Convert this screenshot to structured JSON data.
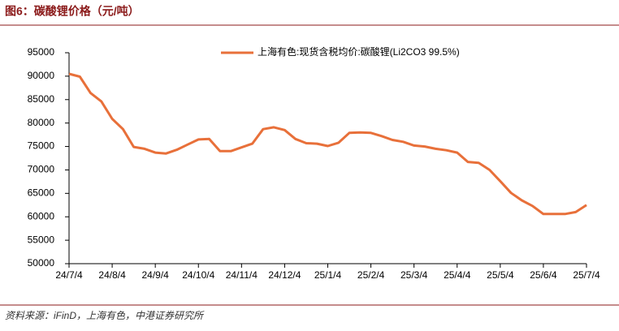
{
  "chart_data": {
    "type": "line",
    "title": "图6：碳酸锂价格（元/吨）",
    "source": "资料来源：iFinD，上海有色，中港证券研究所",
    "categories": [
      "24/7/4",
      null,
      null,
      null,
      "24/8/4",
      null,
      null,
      null,
      "24/9/4",
      null,
      null,
      null,
      "24/10/4",
      null,
      null,
      null,
      "24/11/4",
      null,
      null,
      null,
      "24/12/4",
      null,
      null,
      null,
      "25/1/4",
      null,
      null,
      null,
      "25/2/4",
      null,
      null,
      null,
      "25/3/4",
      null,
      null,
      null,
      "25/4/4",
      null,
      null,
      null,
      "25/5/4",
      null,
      null,
      null,
      "25/6/4",
      null,
      null,
      null,
      "25/7/4"
    ],
    "series": [
      {
        "name": "上海有色:现货含税均价:碳酸锂(Li2CO3 99.5%)",
        "color": "#e8703a",
        "values": [
          90500,
          89900,
          86400,
          84600,
          80900,
          78700,
          74900,
          74500,
          73700,
          73500,
          74300,
          75400,
          76500,
          76600,
          74000,
          74000,
          74800,
          75600,
          78700,
          79100,
          78500,
          76600,
          75700,
          75600,
          75100,
          75800,
          77900,
          78000,
          77900,
          77200,
          76400,
          76000,
          75200,
          75000,
          74500,
          74200,
          73700,
          71700,
          71500,
          70000,
          67600,
          65100,
          63500,
          62300,
          60600,
          60600,
          60600,
          61000,
          62500
        ]
      }
    ],
    "ylim": [
      50000,
      95000
    ],
    "yticks": [
      50000,
      55000,
      60000,
      65000,
      70000,
      75000,
      80000,
      85000,
      90000,
      95000
    ],
    "grid": false,
    "legend": "top"
  }
}
